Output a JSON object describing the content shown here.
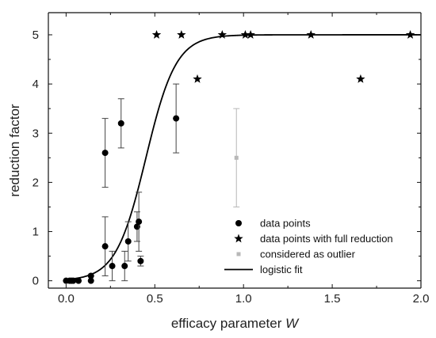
{
  "chart_data": {
    "type": "scatter",
    "xlabel": "efficacy parameter",
    "xlabel_italic": "W",
    "ylabel": "reduction factor",
    "xlim": [
      -0.1,
      2.0
    ],
    "ylim": [
      -0.15,
      5.45
    ],
    "xticks": [
      "0.0",
      "0.5",
      "1.0",
      "1.5",
      "2.0"
    ],
    "xtick_values": [
      0.0,
      0.5,
      1.0,
      1.5,
      2.0
    ],
    "yticks": [
      "0",
      "1",
      "2",
      "3",
      "4",
      "5"
    ],
    "ytick_values": [
      0,
      1,
      2,
      3,
      4,
      5
    ],
    "grid": false,
    "legend_position": "bottom-right",
    "series": [
      {
        "name": "data points",
        "marker": "circle",
        "color": "#000000",
        "points": [
          {
            "x": 0.0,
            "y": 0.0
          },
          {
            "x": 0.02,
            "y": 0.0
          },
          {
            "x": 0.03,
            "y": 0.0
          },
          {
            "x": 0.04,
            "y": 0.0
          },
          {
            "x": 0.07,
            "y": 0.0
          },
          {
            "x": 0.14,
            "y": 0.0
          },
          {
            "x": 0.14,
            "y": 0.1
          },
          {
            "x": 0.22,
            "y": 2.6,
            "err": 0.7
          },
          {
            "x": 0.22,
            "y": 0.7,
            "err": 0.6
          },
          {
            "x": 0.26,
            "y": 0.3,
            "err": 0.3
          },
          {
            "x": 0.31,
            "y": 3.2,
            "err": 0.5
          },
          {
            "x": 0.33,
            "y": 0.3,
            "err": 0.3
          },
          {
            "x": 0.35,
            "y": 0.8,
            "err": 0.4
          },
          {
            "x": 0.4,
            "y": 1.1,
            "err": 0.3
          },
          {
            "x": 0.41,
            "y": 1.2,
            "err": 0.6
          },
          {
            "x": 0.42,
            "y": 0.4,
            "err": 0.1
          },
          {
            "x": 0.62,
            "y": 3.3,
            "err": 0.7
          }
        ]
      },
      {
        "name": "data points with full reduction",
        "marker": "star",
        "color": "#000000",
        "points": [
          {
            "x": 0.51,
            "y": 5.0
          },
          {
            "x": 0.65,
            "y": 5.0
          },
          {
            "x": 0.74,
            "y": 4.1
          },
          {
            "x": 0.88,
            "y": 5.0
          },
          {
            "x": 1.01,
            "y": 5.0
          },
          {
            "x": 1.04,
            "y": 5.0
          },
          {
            "x": 1.38,
            "y": 5.0
          },
          {
            "x": 1.66,
            "y": 4.1
          },
          {
            "x": 1.94,
            "y": 5.0
          }
        ]
      },
      {
        "name": "considered as outlier",
        "marker": "square",
        "color": "#b8b8b8",
        "points": [
          {
            "x": 0.96,
            "y": 2.5,
            "err": 1.0
          }
        ]
      },
      {
        "name": "logistic fit",
        "marker": "line",
        "color": "#000000",
        "curve": {
          "A": 5.0,
          "x0": 0.45,
          "k": 0.085
        }
      }
    ]
  }
}
